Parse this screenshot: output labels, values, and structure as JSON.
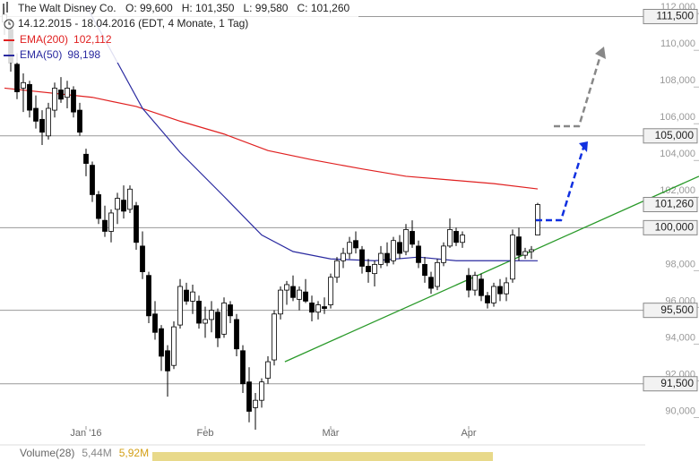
{
  "chart_data": {
    "type": "candlestick",
    "title": "The Walt Disney Co.",
    "ohlc_labels": [
      "O: 99,600",
      "H: 101,350",
      "L: 99,580",
      "C: 101,260"
    ],
    "subtitle": "14.12.2015 - 18.04.2016 (EDT, 4 Monate, 1 Tag)",
    "ylim": [
      89,
      112.4
    ],
    "yticks": [
      {
        "value": 90,
        "label": "90,000"
      },
      {
        "value": 92,
        "label": "92,000"
      },
      {
        "value": 94,
        "label": "94,000"
      },
      {
        "value": 96,
        "label": "96,000"
      },
      {
        "value": 98,
        "label": "98,000"
      },
      {
        "value": 102,
        "label": "102,000"
      },
      {
        "value": 104,
        "label": "104,000"
      },
      {
        "value": 106,
        "label": "106,000"
      },
      {
        "value": 108,
        "label": "108,000"
      },
      {
        "value": 110,
        "label": "110,000"
      },
      {
        "value": 112,
        "label": "112,000"
      }
    ],
    "xticks": [
      {
        "value": 13,
        "label": "Jan '16"
      },
      {
        "value": 32,
        "label": "Feb"
      },
      {
        "value": 52,
        "label": "Mär"
      },
      {
        "value": 74,
        "label": "Apr"
      }
    ],
    "candles": [
      [
        111.2,
        112.0,
        110.5,
        111.6
      ],
      [
        110.8,
        111.4,
        108.5,
        109.0
      ],
      [
        108.9,
        109.5,
        107.0,
        107.4
      ],
      [
        107.6,
        108.4,
        106.3,
        107.9
      ],
      [
        107.8,
        108.0,
        106.0,
        106.4
      ],
      [
        106.5,
        107.2,
        105.4,
        105.8
      ],
      [
        105.9,
        106.4,
        104.5,
        105.2
      ],
      [
        105.0,
        106.8,
        104.8,
        106.5
      ],
      [
        106.4,
        107.9,
        106.0,
        107.6
      ],
      [
        107.5,
        108.2,
        106.8,
        107.0
      ],
      [
        107.1,
        108.0,
        106.5,
        107.6
      ],
      [
        107.5,
        107.7,
        106.0,
        106.3
      ],
      [
        106.4,
        106.8,
        105.0,
        105.2
      ],
      [
        104.0,
        104.3,
        102.8,
        103.5
      ],
      [
        103.4,
        103.6,
        101.4,
        101.8
      ],
      [
        101.8,
        102.0,
        100.2,
        100.5
      ],
      [
        100.4,
        101.2,
        99.5,
        99.8
      ],
      [
        99.8,
        101.0,
        99.2,
        100.8
      ],
      [
        101.0,
        101.9,
        100.2,
        101.6
      ],
      [
        101.5,
        102.3,
        100.5,
        100.9
      ],
      [
        101.0,
        102.3,
        100.8,
        102.1
      ],
      [
        101.2,
        101.4,
        98.8,
        99.2
      ],
      [
        99.0,
        99.8,
        97.2,
        97.6
      ],
      [
        97.4,
        97.6,
        94.8,
        95.2
      ],
      [
        95.3,
        96.0,
        93.9,
        94.3
      ],
      [
        94.5,
        94.7,
        92.2,
        93.0
      ],
      [
        93.3,
        93.6,
        90.8,
        92.2
      ],
      [
        92.5,
        94.9,
        92.3,
        94.6
      ],
      [
        94.7,
        97.2,
        94.5,
        96.8
      ],
      [
        96.6,
        97.0,
        95.8,
        96.0
      ],
      [
        96.0,
        96.9,
        95.3,
        96.5
      ],
      [
        96.0,
        96.3,
        94.5,
        94.8
      ],
      [
        94.8,
        95.7,
        94.0,
        95.0
      ],
      [
        95.0,
        96.0,
        94.3,
        95.5
      ],
      [
        95.4,
        95.6,
        93.5,
        94.0
      ],
      [
        94.2,
        96.2,
        94.0,
        95.9
      ],
      [
        95.8,
        96.0,
        94.8,
        95.2
      ],
      [
        95.0,
        95.3,
        93.0,
        93.4
      ],
      [
        93.3,
        93.6,
        91.0,
        91.5
      ],
      [
        91.6,
        92.4,
        89.4,
        90.0
      ],
      [
        90.2,
        91.0,
        89.0,
        90.6
      ],
      [
        90.6,
        91.8,
        90.2,
        91.6
      ],
      [
        91.8,
        93.0,
        91.5,
        92.7
      ],
      [
        92.8,
        95.5,
        92.5,
        95.3
      ],
      [
        95.3,
        96.8,
        95.0,
        96.6
      ],
      [
        96.6,
        97.1,
        95.8,
        96.9
      ],
      [
        96.8,
        97.4,
        96.0,
        96.2
      ],
      [
        96.1,
        96.8,
        95.5,
        96.6
      ],
      [
        96.5,
        97.2,
        95.9,
        96.0
      ],
      [
        95.9,
        96.3,
        94.9,
        95.4
      ],
      [
        95.4,
        96.0,
        95.0,
        95.8
      ],
      [
        95.7,
        96.2,
        95.3,
        95.6
      ],
      [
        95.8,
        97.5,
        95.6,
        97.3
      ],
      [
        97.3,
        98.4,
        97.0,
        98.2
      ],
      [
        98.2,
        98.9,
        97.8,
        98.6
      ],
      [
        98.6,
        99.5,
        98.3,
        99.2
      ],
      [
        99.3,
        99.8,
        98.6,
        98.9
      ],
      [
        98.8,
        99.0,
        97.5,
        97.9
      ],
      [
        97.9,
        98.3,
        97.0,
        97.6
      ],
      [
        97.5,
        98.2,
        96.8,
        98.0
      ],
      [
        98.0,
        99.0,
        97.8,
        98.6
      ],
      [
        98.6,
        99.2,
        97.9,
        98.1
      ],
      [
        98.2,
        99.5,
        98.0,
        99.3
      ],
      [
        99.2,
        99.6,
        98.3,
        98.6
      ],
      [
        98.7,
        100.2,
        98.5,
        99.9
      ],
      [
        99.8,
        100.4,
        98.9,
        99.1
      ],
      [
        99.0,
        99.3,
        97.8,
        98.1
      ],
      [
        98.0,
        98.4,
        97.0,
        97.4
      ],
      [
        97.3,
        97.6,
        96.4,
        96.7
      ],
      [
        96.8,
        98.3,
        96.6,
        98.1
      ],
      [
        98.1,
        99.2,
        97.9,
        99.0
      ],
      [
        99.0,
        100.5,
        98.9,
        99.9
      ],
      [
        99.8,
        100.0,
        99.0,
        99.2
      ],
      [
        99.2,
        99.8,
        98.9,
        99.6
      ],
      [
        97.4,
        97.8,
        96.2,
        96.6
      ],
      [
        96.6,
        97.6,
        96.3,
        97.4
      ],
      [
        97.2,
        97.5,
        96.0,
        96.3
      ],
      [
        96.3,
        96.5,
        95.6,
        95.9
      ],
      [
        95.9,
        97.0,
        95.7,
        96.8
      ],
      [
        96.8,
        97.2,
        96.0,
        96.4
      ],
      [
        96.4,
        97.3,
        96.0,
        97.0
      ],
      [
        97.2,
        99.9,
        97.0,
        99.6
      ],
      [
        99.5,
        100.0,
        98.2,
        98.5
      ],
      [
        98.5,
        98.9,
        98.3,
        98.7
      ],
      [
        98.7,
        99.0,
        98.3,
        98.8
      ],
      [
        99.6,
        101.35,
        99.58,
        101.26
      ]
    ],
    "series": [
      {
        "name": "EMA(200)",
        "value_label": "102,112",
        "color": "#e02020",
        "x": [
          0,
          14,
          21,
          28,
          35,
          42,
          49,
          57,
          64,
          71,
          78,
          85
        ],
        "values": [
          107.6,
          107.1,
          106.6,
          105.8,
          105.1,
          104.2,
          103.7,
          103.2,
          102.8,
          102.6,
          102.4,
          102.112
        ]
      },
      {
        "name": "EMA(50)",
        "value_label": "98,198",
        "color": "#2a2aa0",
        "x": [
          13,
          18,
          22,
          28,
          35,
          41,
          46,
          52,
          59,
          66,
          72,
          79,
          85
        ],
        "values": [
          112.1,
          109,
          106.5,
          104.1,
          101.7,
          99.6,
          98.7,
          98.3,
          98.2,
          98.4,
          98.2,
          98.2,
          98.198
        ]
      }
    ],
    "levels": [
      {
        "value": 111.5,
        "label": "111,500"
      },
      {
        "value": 105,
        "label": "105,000"
      },
      {
        "value": 100,
        "label": "100,000"
      },
      {
        "value": 95.5,
        "label": "95,500"
      },
      {
        "value": 91.5,
        "label": "91,500"
      }
    ],
    "last_price": {
      "value": 101.26,
      "label": "101,260"
    },
    "trendline": {
      "x": [
        44.7,
        110.7
      ],
      "values": [
        92.7,
        102.8
      ],
      "color": "#2a9a2a"
    },
    "volume": {
      "name": "Volume(28)",
      "values": [
        5440000,
        5920000
      ],
      "value_labels": [
        "5,44M",
        "5,92M"
      ],
      "colors": [
        "#888888",
        "#d4a017"
      ]
    }
  }
}
